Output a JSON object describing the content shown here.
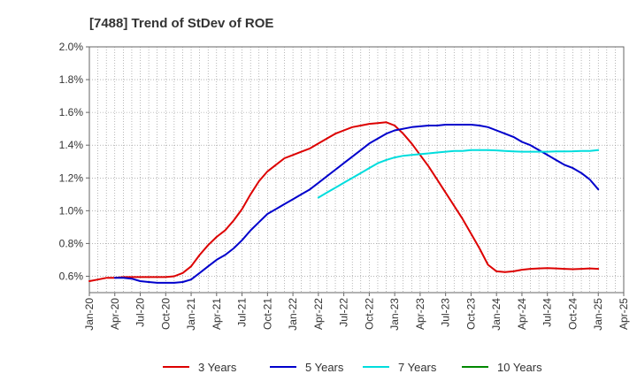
{
  "chart_data": {
    "type": "line",
    "title": "[7488]  Trend of StDev of ROE",
    "xlabel": "",
    "ylabel": "",
    "ylim": [
      0.5,
      2.0
    ],
    "y_ticks": [
      "0.6%",
      "0.8%",
      "1.0%",
      "1.2%",
      "1.4%",
      "1.6%",
      "1.8%",
      "2.0%"
    ],
    "y_tick_values": [
      0.6,
      0.8,
      1.0,
      1.2,
      1.4,
      1.6,
      1.8,
      2.0
    ],
    "x_ticks": [
      "Jan-20",
      "Apr-20",
      "Jul-20",
      "Oct-20",
      "Jan-21",
      "Apr-21",
      "Jul-21",
      "Oct-21",
      "Jan-22",
      "Apr-22",
      "Jul-22",
      "Oct-22",
      "Jan-23",
      "Apr-23",
      "Jul-23",
      "Oct-23",
      "Jan-24",
      "Apr-24",
      "Jul-24",
      "Oct-24",
      "Jan-25",
      "Apr-25"
    ],
    "grid": true,
    "legend_position": "bottom",
    "series": [
      {
        "name": "3 Years",
        "color": "#dd0000",
        "x": [
          "Jan-20",
          "Feb-20",
          "Mar-20",
          "Apr-20",
          "May-20",
          "Jun-20",
          "Jul-20",
          "Aug-20",
          "Sep-20",
          "Oct-20",
          "Nov-20",
          "Dec-20",
          "Jan-21",
          "Feb-21",
          "Mar-21",
          "Apr-21",
          "May-21",
          "Jun-21",
          "Jul-21",
          "Aug-21",
          "Sep-21",
          "Oct-21",
          "Nov-21",
          "Dec-21",
          "Jan-22",
          "Feb-22",
          "Mar-22",
          "Apr-22",
          "May-22",
          "Jun-22",
          "Jul-22",
          "Aug-22",
          "Sep-22",
          "Oct-22",
          "Nov-22",
          "Dec-22",
          "Jan-23",
          "Feb-23",
          "Mar-23",
          "Apr-23",
          "May-23",
          "Jun-23",
          "Jul-23",
          "Aug-23",
          "Sep-23",
          "Oct-23",
          "Nov-23",
          "Dec-23",
          "Jan-24",
          "Feb-24",
          "Mar-24",
          "Apr-24",
          "May-24",
          "Jun-24",
          "Jul-24",
          "Aug-24",
          "Sep-24",
          "Oct-24",
          "Nov-24",
          "Dec-24",
          "Jan-25"
        ],
        "values": [
          0.57,
          0.58,
          0.59,
          0.59,
          0.595,
          0.595,
          0.595,
          0.595,
          0.595,
          0.595,
          0.6,
          0.62,
          0.66,
          0.73,
          0.79,
          0.84,
          0.88,
          0.94,
          1.01,
          1.1,
          1.18,
          1.24,
          1.28,
          1.32,
          1.34,
          1.36,
          1.38,
          1.41,
          1.44,
          1.47,
          1.49,
          1.51,
          1.52,
          1.53,
          1.535,
          1.54,
          1.52,
          1.47,
          1.41,
          1.34,
          1.27,
          1.19,
          1.11,
          1.03,
          0.95,
          0.86,
          0.77,
          0.67,
          0.63,
          0.625,
          0.63,
          0.64,
          0.645,
          0.648,
          0.65,
          0.648,
          0.645,
          0.643,
          0.645,
          0.648,
          0.645
        ]
      },
      {
        "name": "5 Years",
        "color": "#0000cc",
        "x": [
          "Jan-20",
          "Feb-20",
          "Mar-20",
          "Apr-20",
          "May-20",
          "Jun-20",
          "Jul-20",
          "Aug-20",
          "Sep-20",
          "Oct-20",
          "Nov-20",
          "Dec-20",
          "Jan-21",
          "Feb-21",
          "Mar-21",
          "Apr-21",
          "May-21",
          "Jun-21",
          "Jul-21",
          "Aug-21",
          "Sep-21",
          "Oct-21",
          "Nov-21",
          "Dec-21",
          "Jan-22",
          "Feb-22",
          "Mar-22",
          "Apr-22",
          "May-22",
          "Jun-22",
          "Jul-22",
          "Aug-22",
          "Sep-22",
          "Oct-22",
          "Nov-22",
          "Dec-22",
          "Jan-23",
          "Feb-23",
          "Mar-23",
          "Apr-23",
          "May-23",
          "Jun-23",
          "Jul-23",
          "Aug-23",
          "Sep-23",
          "Oct-23",
          "Nov-23",
          "Dec-23",
          "Jan-24",
          "Feb-24",
          "Mar-24",
          "Apr-24",
          "May-24",
          "Jun-24",
          "Jul-24",
          "Aug-24",
          "Sep-24",
          "Oct-24",
          "Nov-24",
          "Dec-24",
          "Jan-25"
        ],
        "values": [
          null,
          null,
          null,
          0.59,
          0.59,
          0.585,
          0.57,
          0.565,
          0.56,
          0.56,
          0.56,
          0.565,
          0.58,
          0.62,
          0.66,
          0.7,
          0.73,
          0.77,
          0.82,
          0.88,
          0.93,
          0.98,
          1.01,
          1.04,
          1.07,
          1.1,
          1.13,
          1.17,
          1.21,
          1.25,
          1.29,
          1.33,
          1.37,
          1.41,
          1.44,
          1.47,
          1.49,
          1.5,
          1.51,
          1.515,
          1.52,
          1.52,
          1.525,
          1.525,
          1.525,
          1.525,
          1.52,
          1.51,
          1.49,
          1.47,
          1.45,
          1.42,
          1.4,
          1.37,
          1.34,
          1.31,
          1.28,
          1.26,
          1.23,
          1.19,
          1.13
        ]
      },
      {
        "name": "7 Years",
        "color": "#00dddd",
        "x": [
          "Apr-22",
          "May-22",
          "Jun-22",
          "Jul-22",
          "Aug-22",
          "Sep-22",
          "Oct-22",
          "Nov-22",
          "Dec-22",
          "Jan-23",
          "Feb-23",
          "Mar-23",
          "Apr-23",
          "May-23",
          "Jun-23",
          "Jul-23",
          "Aug-23",
          "Sep-23",
          "Oct-23",
          "Nov-23",
          "Dec-23",
          "Jan-24",
          "Feb-24",
          "Mar-24",
          "Apr-24",
          "May-24",
          "Jun-24",
          "Jul-24",
          "Aug-24",
          "Sep-24",
          "Oct-24",
          "Nov-24",
          "Dec-24",
          "Jan-25"
        ],
        "values": [
          1.08,
          1.11,
          1.14,
          1.17,
          1.2,
          1.23,
          1.26,
          1.29,
          1.31,
          1.325,
          1.335,
          1.34,
          1.345,
          1.35,
          1.355,
          1.36,
          1.365,
          1.365,
          1.37,
          1.37,
          1.37,
          1.368,
          1.365,
          1.362,
          1.36,
          1.36,
          1.36,
          1.36,
          1.362,
          1.362,
          1.363,
          1.365,
          1.365,
          1.37
        ]
      },
      {
        "name": "10 Years",
        "color": "#008800",
        "x": [],
        "values": []
      }
    ]
  }
}
